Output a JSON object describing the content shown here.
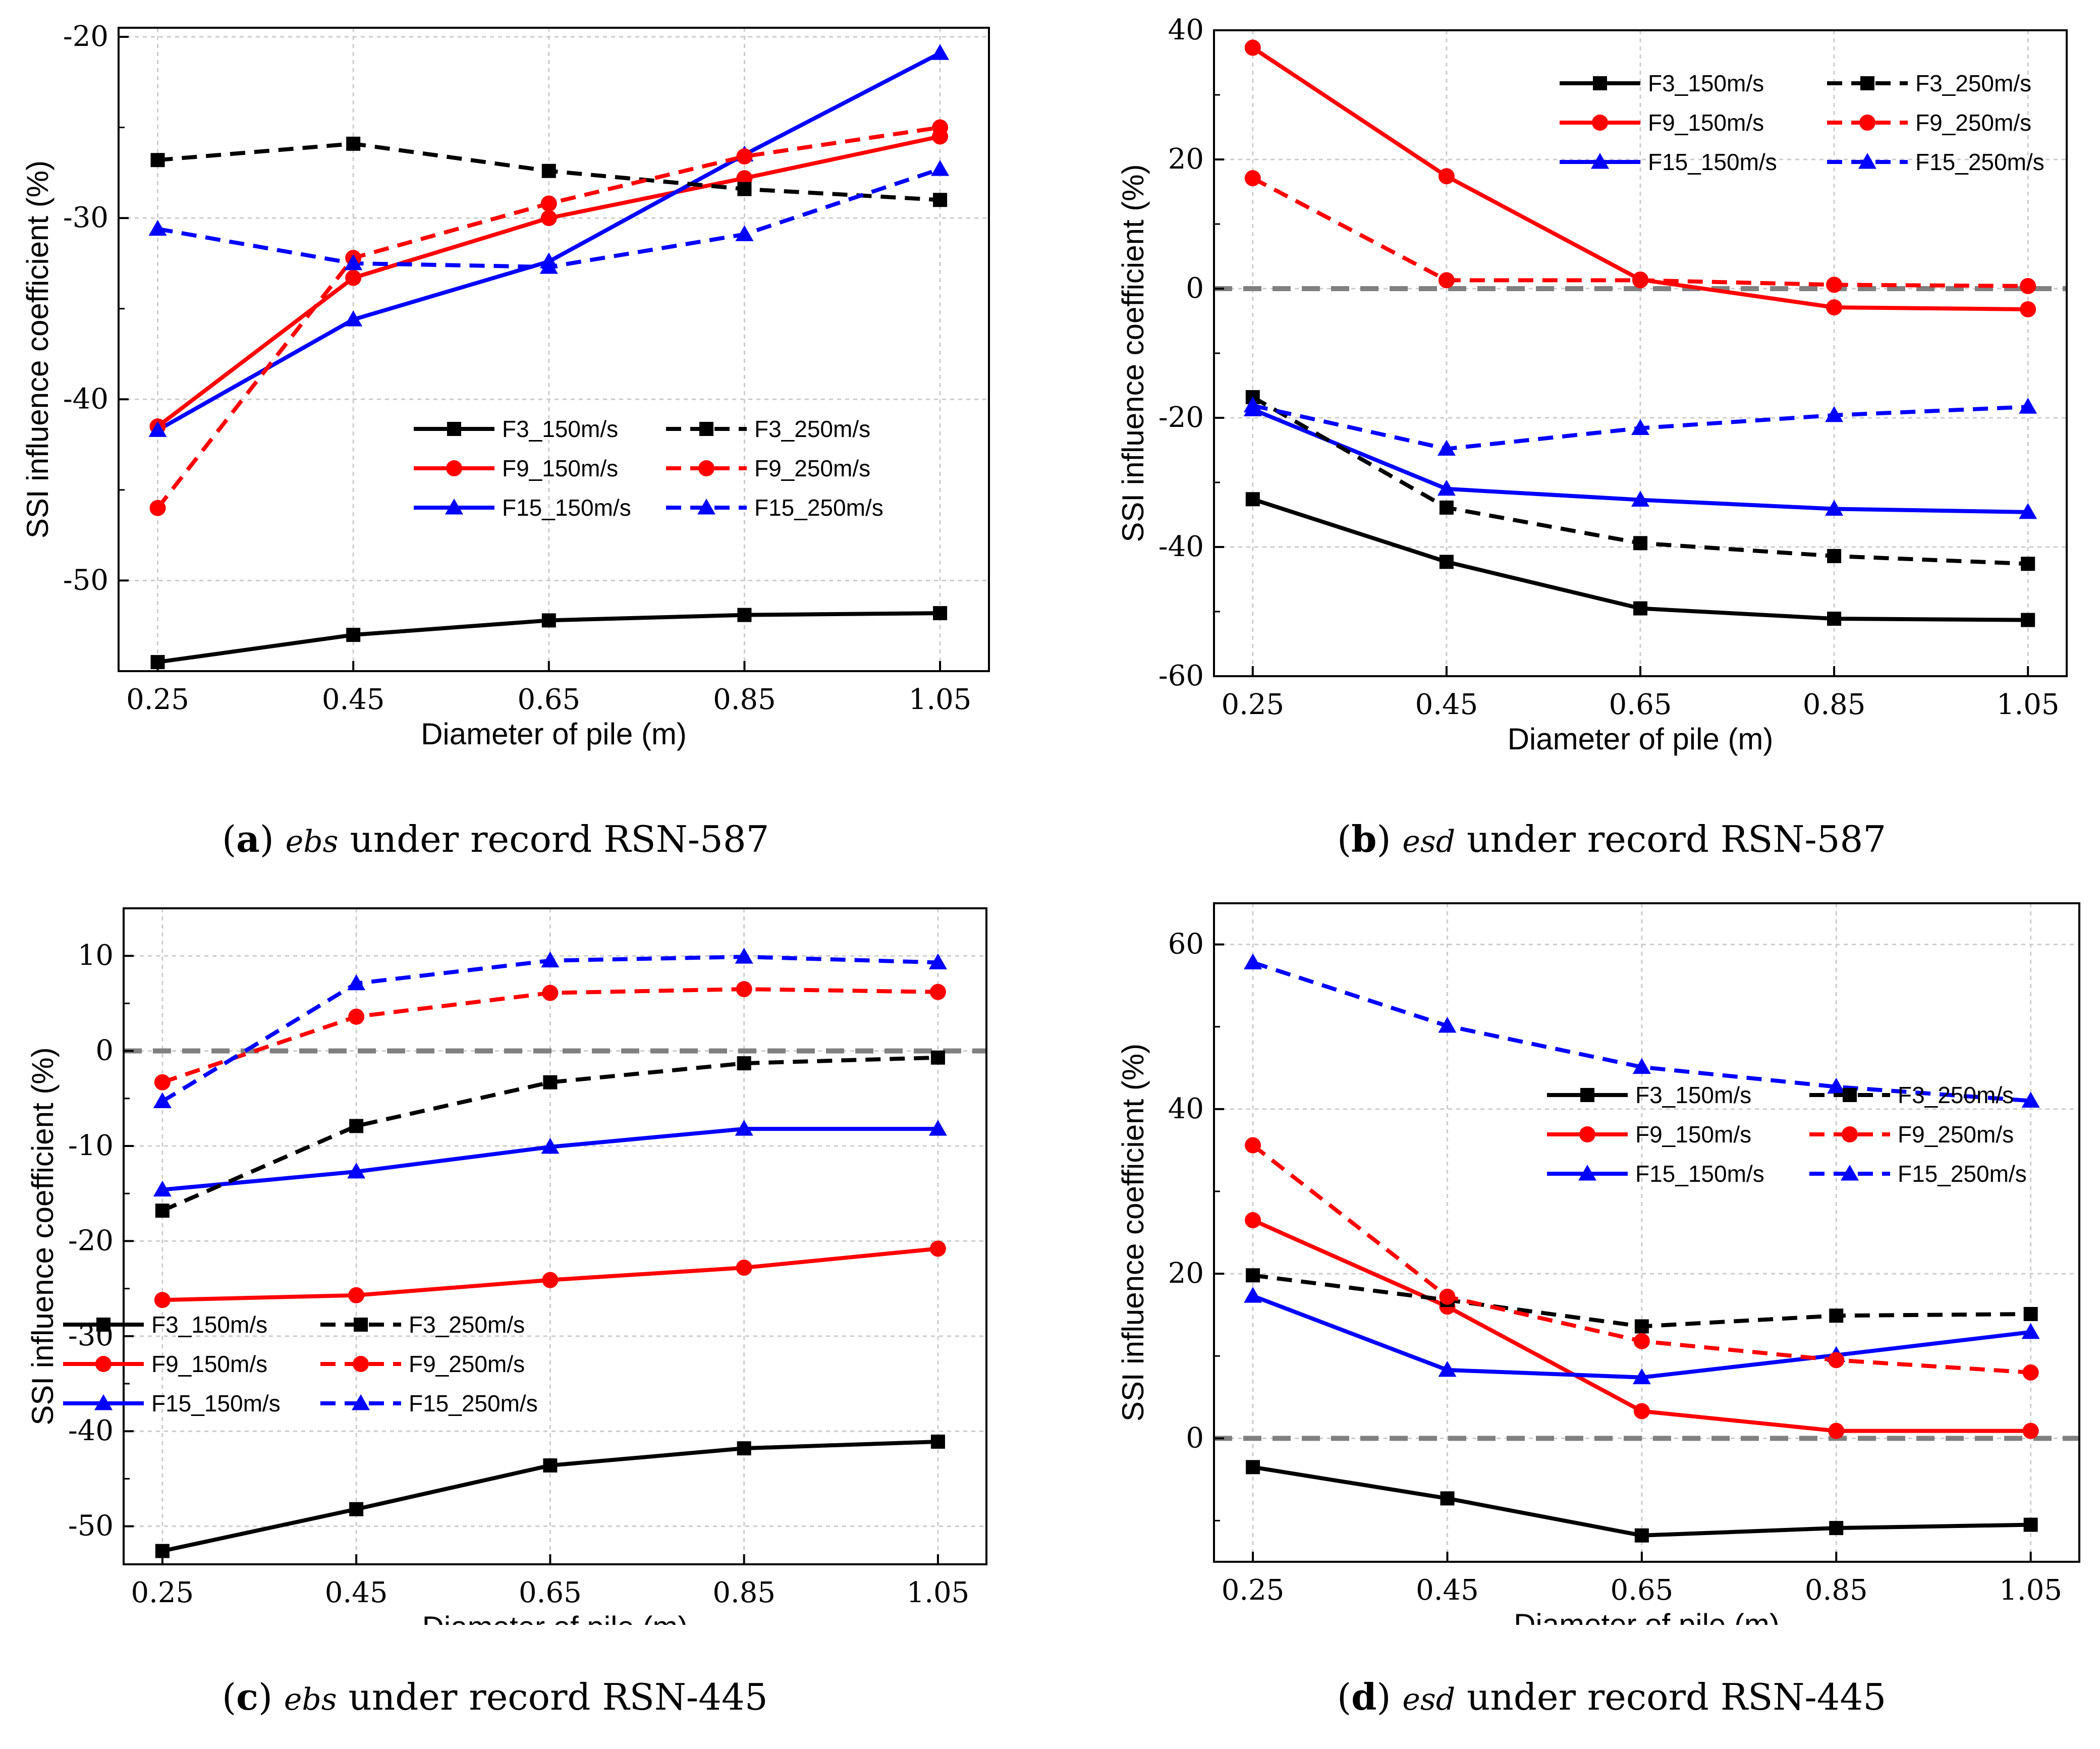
{
  "colors": {
    "black": "#000000",
    "red": "#ff0000",
    "blue": "#0000ff",
    "zero_line": "#808080",
    "grid": "#cccccc"
  },
  "captions": [
    {
      "letter": "a",
      "var": "ebs",
      "rest": "under record RSN-587"
    },
    {
      "letter": "b",
      "var": "esd",
      "rest": "under record RSN-587"
    },
    {
      "letter": "c",
      "var": "ebs",
      "rest": "under record RSN-445"
    },
    {
      "letter": "d",
      "var": "esd",
      "rest": "under record RSN-445"
    }
  ],
  "chart_data": [
    {
      "type": "line",
      "xlabel": "Diameter of pile (m)",
      "ylabel": "SSI influence coefficient (%)",
      "x": [
        0.25,
        0.45,
        0.65,
        0.85,
        1.05
      ],
      "x_tick_labels": [
        "0.25",
        "0.45",
        "0.65",
        "0.85",
        "1.05"
      ],
      "xlim": [
        0.21,
        1.1
      ],
      "ylim": [
        -55,
        -19.5
      ],
      "y_ticks": [
        -50,
        -40,
        -30,
        -20
      ],
      "zero_line": false,
      "legend_position": "center-right",
      "series": [
        {
          "name": "F3_150m/s",
          "color": "black",
          "dash": false,
          "marker": "square",
          "values": [
            -54.5,
            -53.0,
            -52.2,
            -51.9,
            -51.8
          ]
        },
        {
          "name": "F9_150m/s",
          "color": "red",
          "dash": false,
          "marker": "circle",
          "values": [
            -41.5,
            -33.3,
            -30.0,
            -27.8,
            -25.5
          ]
        },
        {
          "name": "F15_150m/s",
          "color": "blue",
          "dash": false,
          "marker": "triangle",
          "values": [
            -41.7,
            -35.6,
            -32.4,
            -26.5,
            -20.9
          ]
        },
        {
          "name": "F3_250m/s",
          "color": "black",
          "dash": true,
          "marker": "square",
          "values": [
            -26.8,
            -25.9,
            -27.4,
            -28.4,
            -29.0
          ]
        },
        {
          "name": "F9_250m/s",
          "color": "red",
          "dash": true,
          "marker": "circle",
          "values": [
            -46.0,
            -32.2,
            -29.2,
            -26.6,
            -25.0
          ]
        },
        {
          "name": "F15_250m/s",
          "color": "blue",
          "dash": true,
          "marker": "triangle",
          "values": [
            -30.6,
            -32.5,
            -32.7,
            -30.9,
            -27.3
          ]
        }
      ]
    },
    {
      "type": "line",
      "xlabel": "Diameter of pile (m)",
      "ylabel": "SSI influence coefficient (%)",
      "x": [
        0.25,
        0.45,
        0.65,
        0.85,
        1.05
      ],
      "x_tick_labels": [
        "0.25",
        "0.45",
        "0.65",
        "0.85",
        "1.05"
      ],
      "xlim": [
        0.21,
        1.09
      ],
      "ylim": [
        -60,
        40
      ],
      "y_ticks": [
        -60,
        -40,
        -20,
        0,
        20,
        40
      ],
      "zero_line": true,
      "legend_position": "top-right",
      "series": [
        {
          "name": "F3_150m/s",
          "color": "black",
          "dash": false,
          "marker": "square",
          "values": [
            -32.6,
            -42.3,
            -49.5,
            -51.1,
            -51.3
          ]
        },
        {
          "name": "F9_150m/s",
          "color": "red",
          "dash": false,
          "marker": "circle",
          "values": [
            37.3,
            17.4,
            1.4,
            -2.9,
            -3.2
          ]
        },
        {
          "name": "F15_150m/s",
          "color": "blue",
          "dash": false,
          "marker": "triangle",
          "values": [
            -18.7,
            -31.0,
            -32.7,
            -34.1,
            -34.6
          ]
        },
        {
          "name": "F3_250m/s",
          "color": "black",
          "dash": true,
          "marker": "square",
          "values": [
            -16.8,
            -33.9,
            -39.4,
            -41.4,
            -42.6
          ]
        },
        {
          "name": "F9_250m/s",
          "color": "red",
          "dash": true,
          "marker": "circle",
          "values": [
            17.1,
            1.3,
            1.3,
            0.6,
            0.4
          ]
        },
        {
          "name": "F15_250m/s",
          "color": "blue",
          "dash": true,
          "marker": "triangle",
          "values": [
            -18.1,
            -24.8,
            -21.6,
            -19.6,
            -18.3
          ]
        }
      ]
    },
    {
      "type": "line",
      "xlabel": "Diameter of pile (m)",
      "ylabel": "SSI influence coefficient (%)",
      "x": [
        0.25,
        0.45,
        0.65,
        0.85,
        1.05
      ],
      "x_tick_labels": [
        "0.25",
        "0.45",
        "0.65",
        "0.85",
        "1.05"
      ],
      "xlim": [
        0.21,
        1.1
      ],
      "ylim": [
        -54,
        15
      ],
      "y_ticks": [
        -50,
        -40,
        -30,
        -20,
        -10,
        0,
        10
      ],
      "zero_line": true,
      "legend_position": "bottom-left",
      "series": [
        {
          "name": "F3_150m/s",
          "color": "black",
          "dash": false,
          "marker": "square",
          "values": [
            -52.6,
            -48.2,
            -43.6,
            -41.8,
            -41.1
          ]
        },
        {
          "name": "F9_150m/s",
          "color": "red",
          "dash": false,
          "marker": "circle",
          "values": [
            -26.2,
            -25.7,
            -24.1,
            -22.8,
            -20.8
          ]
        },
        {
          "name": "F15_150m/s",
          "color": "blue",
          "dash": false,
          "marker": "triangle",
          "values": [
            -14.6,
            -12.7,
            -10.1,
            -8.2,
            -8.2
          ]
        },
        {
          "name": "F3_250m/s",
          "color": "black",
          "dash": true,
          "marker": "square",
          "values": [
            -16.8,
            -7.9,
            -3.3,
            -1.3,
            -0.7
          ]
        },
        {
          "name": "F9_250m/s",
          "color": "red",
          "dash": true,
          "marker": "circle",
          "values": [
            -3.3,
            3.6,
            6.1,
            6.5,
            6.2
          ]
        },
        {
          "name": "F15_250m/s",
          "color": "blue",
          "dash": true,
          "marker": "triangle",
          "values": [
            -5.3,
            7.1,
            9.5,
            9.9,
            9.3
          ]
        }
      ]
    },
    {
      "type": "line",
      "xlabel": "Diameter of pile (m)",
      "ylabel": "SSI influence coefficient (%)",
      "x": [
        0.25,
        0.45,
        0.65,
        0.85,
        1.05
      ],
      "x_tick_labels": [
        "0.25",
        "0.45",
        "0.65",
        "0.85",
        "1.05"
      ],
      "xlim": [
        0.21,
        1.1
      ],
      "ylim": [
        -15,
        65
      ],
      "y_ticks": [
        0,
        20,
        40,
        60
      ],
      "zero_line": true,
      "legend_position": "center-right",
      "series": [
        {
          "name": "F3_150m/s",
          "color": "black",
          "dash": false,
          "marker": "square",
          "values": [
            -3.5,
            -7.3,
            -11.8,
            -10.9,
            -10.5
          ]
        },
        {
          "name": "F9_150m/s",
          "color": "red",
          "dash": false,
          "marker": "circle",
          "values": [
            26.5,
            16.0,
            3.3,
            0.9,
            0.9
          ]
        },
        {
          "name": "F15_150m/s",
          "color": "blue",
          "dash": false,
          "marker": "triangle",
          "values": [
            17.3,
            8.3,
            7.4,
            10.1,
            12.9
          ]
        },
        {
          "name": "F3_250m/s",
          "color": "black",
          "dash": true,
          "marker": "square",
          "values": [
            19.8,
            16.8,
            13.6,
            14.9,
            15.1
          ]
        },
        {
          "name": "F9_250m/s",
          "color": "red",
          "dash": true,
          "marker": "circle",
          "values": [
            35.6,
            17.2,
            11.8,
            9.5,
            8.0
          ]
        },
        {
          "name": "F15_250m/s",
          "color": "blue",
          "dash": true,
          "marker": "triangle",
          "values": [
            57.8,
            50.1,
            45.1,
            42.7,
            41.0
          ]
        }
      ]
    }
  ]
}
